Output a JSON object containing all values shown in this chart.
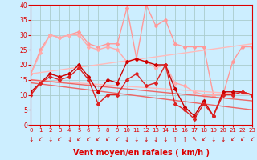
{
  "background_color": "#cceeff",
  "grid_color": "#aacccc",
  "xlabel": "Vent moyen/en rafales ( km/h )",
  "xlabel_color": "#dd0000",
  "xlabel_fontsize": 7,
  "tick_color": "#dd0000",
  "ylim": [
    0,
    40
  ],
  "xlim": [
    0,
    23
  ],
  "yticks": [
    0,
    5,
    10,
    15,
    20,
    25,
    30,
    35,
    40
  ],
  "xticks": [
    0,
    1,
    2,
    3,
    4,
    5,
    6,
    7,
    8,
    9,
    10,
    11,
    12,
    13,
    14,
    15,
    16,
    17,
    18,
    19,
    20,
    21,
    22,
    23
  ],
  "series": [
    {
      "x": [
        0,
        1,
        2,
        3,
        4,
        5,
        6,
        7,
        8,
        9,
        10,
        11,
        12,
        13,
        14,
        15,
        16,
        17,
        18,
        19,
        20,
        21,
        22,
        23
      ],
      "y": [
        17,
        25,
        30,
        29,
        30,
        31,
        27,
        26,
        27,
        27,
        39,
        22,
        40,
        33,
        35,
        27,
        26,
        26,
        26,
        10,
        10,
        21,
        26,
        26
      ],
      "color": "#ff9999",
      "lw": 1.0,
      "marker": "D",
      "ms": 2.0
    },
    {
      "x": [
        0,
        1,
        2,
        3,
        4,
        5,
        6,
        7,
        8,
        9,
        10,
        11,
        12,
        13,
        14,
        15,
        16,
        17,
        18,
        19,
        20,
        21,
        22,
        23
      ],
      "y": [
        17,
        24,
        30,
        29,
        30,
        30,
        26,
        25,
        26,
        25,
        21,
        22,
        21,
        19,
        20,
        14,
        13,
        11,
        10,
        10,
        10,
        10,
        11,
        10
      ],
      "color": "#ffaaaa",
      "lw": 1.0,
      "marker": "D",
      "ms": 2.0
    },
    {
      "x": [
        0,
        23
      ],
      "y": [
        17,
        27
      ],
      "color": "#ffbbbb",
      "lw": 1.0,
      "marker": "None",
      "ms": 0
    },
    {
      "x": [
        0,
        23
      ],
      "y": [
        15,
        10
      ],
      "color": "#ffbbbb",
      "lw": 1.0,
      "marker": "None",
      "ms": 0
    },
    {
      "x": [
        0,
        23
      ],
      "y": [
        15,
        8
      ],
      "color": "#ee6666",
      "lw": 1.0,
      "marker": "None",
      "ms": 0
    },
    {
      "x": [
        0,
        23
      ],
      "y": [
        14,
        5
      ],
      "color": "#ee6666",
      "lw": 1.0,
      "marker": "None",
      "ms": 0
    },
    {
      "x": [
        0,
        1,
        2,
        3,
        4,
        5,
        6,
        7,
        8,
        9,
        10,
        11,
        12,
        13,
        14,
        15,
        16,
        17,
        18,
        19,
        20,
        21,
        22,
        23
      ],
      "y": [
        11,
        14,
        17,
        16,
        17,
        20,
        16,
        11,
        15,
        14,
        21,
        22,
        21,
        20,
        20,
        12,
        6,
        3,
        8,
        3,
        11,
        11,
        11,
        10
      ],
      "color": "#cc0000",
      "lw": 1.0,
      "marker": "D",
      "ms": 2.0
    },
    {
      "x": [
        0,
        1,
        2,
        3,
        4,
        5,
        6,
        7,
        8,
        9,
        10,
        11,
        12,
        13,
        14,
        15,
        16,
        17,
        18,
        19,
        20,
        21,
        22,
        23
      ],
      "y": [
        10,
        14,
        16,
        15,
        16,
        19,
        15,
        7,
        10,
        10,
        15,
        17,
        13,
        14,
        20,
        7,
        5,
        2,
        7,
        3,
        10,
        10,
        11,
        10
      ],
      "color": "#dd2222",
      "lw": 1.0,
      "marker": "D",
      "ms": 2.0
    }
  ],
  "wind_arrows": [
    "↓",
    "↙",
    "↓",
    "↙",
    "↓",
    "↙",
    "↙",
    "↙",
    "↙",
    "↙",
    "↓",
    "↓",
    "↓",
    "↓",
    "↓",
    "↑",
    "↑",
    "↖",
    "↙",
    "↓",
    "↓",
    "↙",
    "↙",
    "↙"
  ],
  "arrow_color": "#cc0000",
  "arrow_fontsize": 5.5
}
